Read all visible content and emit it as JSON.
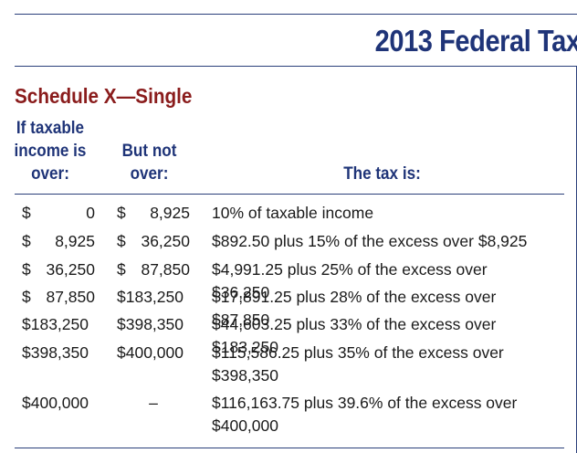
{
  "banner": {
    "title": "2013 Federal Tax"
  },
  "schedule": {
    "title": "Schedule X—Single"
  },
  "headers": {
    "col1": "If taxable\nincome is\nover:",
    "col2": "But not\nover:",
    "col3": "The tax is:"
  },
  "rows": [
    {
      "over_dollar": "$",
      "over_amount": "0",
      "over_full": "",
      "notover_dollar": "$",
      "notover_amount": "8,925",
      "notover_full": "",
      "tax": "10% of taxable income"
    },
    {
      "over_dollar": "$",
      "over_amount": "8,925",
      "over_full": "",
      "notover_dollar": "$",
      "notover_amount": "36,250",
      "notover_full": "",
      "tax": "$892.50 plus 15% of the excess over $8,925"
    },
    {
      "over_dollar": "$",
      "over_amount": "36,250",
      "over_full": "",
      "notover_dollar": "$",
      "notover_amount": "87,850",
      "notover_full": "",
      "tax": "$4,991.25 plus 25% of the excess over $36,250"
    },
    {
      "over_dollar": "$",
      "over_amount": "87,850",
      "over_full": "",
      "notover_dollar": "",
      "notover_amount": "",
      "notover_full": "$183,250",
      "tax": "$17,891.25 plus 28% of the excess over $87,850"
    },
    {
      "over_dollar": "",
      "over_amount": "",
      "over_full": "$183,250",
      "notover_dollar": "",
      "notover_amount": "",
      "notover_full": "$398,350",
      "tax": "$44,603.25 plus 33% of the excess over $183,250"
    },
    {
      "over_dollar": "",
      "over_amount": "",
      "over_full": "$398,350",
      "notover_dollar": "",
      "notover_amount": "",
      "notover_full": "$400,000",
      "tax": "$115,586.25 plus 35% of the excess over $398,350"
    },
    {
      "over_dollar": "",
      "over_amount": "",
      "over_full": "$400,000",
      "notover_dollar": "",
      "notover_amount": "",
      "notover_full": "–",
      "tax": "$116,163.75 plus 39.6% of the excess over $400,000"
    }
  ],
  "colors": {
    "title_blue": "#1f3478",
    "schedule_red": "#8a1c1c",
    "rule": "#2a3f7a"
  }
}
